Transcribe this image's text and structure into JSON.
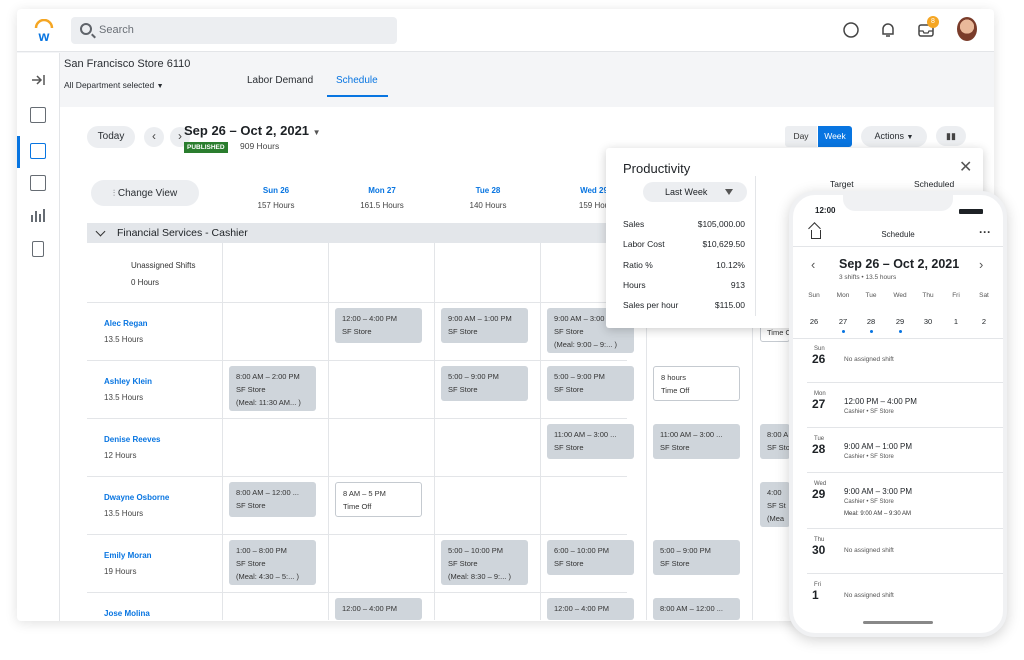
{
  "search": {
    "placeholder": "Search"
  },
  "notifications_count": "8",
  "store": {
    "name": "San Francisco Store 6110",
    "department": "All Department selected"
  },
  "tabs": [
    {
      "label": "Labor Demand"
    },
    {
      "label": "Schedule"
    }
  ],
  "toolbar": {
    "today": "Today",
    "range": "Sep 26 – Oct 2, 2021",
    "status": "PUBLISHED",
    "hours": "909 Hours",
    "day": "Day",
    "week": "Week",
    "actions": "Actions",
    "change_view": "Change View"
  },
  "days": [
    {
      "label": "Sun 26",
      "hours": "157 Hours"
    },
    {
      "label": "Mon 27",
      "hours": "161.5 Hours"
    },
    {
      "label": "Tue 28",
      "hours": "140 Hours"
    },
    {
      "label": "Wed 29",
      "hours": "159 Hou"
    }
  ],
  "group": {
    "title": "Financial Services - Cashier"
  },
  "unassigned": {
    "label": "Unassigned Shifts",
    "hours": "0 Hours"
  },
  "employees": [
    {
      "name": "Alec Regan",
      "hours": "13.5 Hours"
    },
    {
      "name": "Ashley Klein",
      "hours": "13.5 Hours"
    },
    {
      "name": "Denise Reeves",
      "hours": "12 Hours"
    },
    {
      "name": "Dwayne Osborne",
      "hours": "13.5 Hours"
    },
    {
      "name": "Emily Moran",
      "hours": "19 Hours"
    },
    {
      "name": "Jose Molina",
      "hours": ""
    }
  ],
  "shifts": {
    "alec": [
      {
        "t": "12:00 – 4:00 PM",
        "l": "SF Store"
      },
      {
        "t": "9:00 AM – 1:00 PM",
        "l": "SF Store"
      },
      {
        "t": "9:00 AM – 3:00",
        "l": "SF Store",
        "m": "(Meal: 9:00 – 9:...  )"
      },
      {
        "t": "Time Of"
      }
    ],
    "ashley": [
      {
        "t": "8:00 AM – 2:00 PM",
        "l": "SF Store",
        "m": "(Meal: 11:30 AM...  )"
      },
      {
        "t": "5:00 – 9:00 PM",
        "l": "SF Store"
      },
      {
        "t": "5:00 – 9:00 PM",
        "l": "SF Store"
      },
      {
        "t": "8 hours",
        "l": "Time Off"
      }
    ],
    "denise": [
      {
        "t": "11:00 AM – 3:00 ...",
        "l": "SF Store"
      },
      {
        "t": "11:00 AM – 3:00 ...",
        "l": "SF Store"
      },
      {
        "t": "8:00 A",
        "l": "SF Sto"
      }
    ],
    "dwayne": [
      {
        "t": "8:00 AM – 12:00 ...",
        "l": "SF Store"
      },
      {
        "t": "8 AM – 5 PM",
        "l": "Time Off"
      },
      {
        "t": "4:00",
        "l": "SF St",
        "m": "(Mea"
      }
    ],
    "emily": [
      {
        "t": "1:00 – 8:00 PM",
        "l": "SF Store",
        "m": "(Meal: 4:30 – 5:...  )"
      },
      {
        "t": "5:00 – 10:00 PM",
        "l": "SF Store",
        "m": "(Meal: 8:30 – 9:...  )"
      },
      {
        "t": "6:00 – 10:00 PM",
        "l": "SF Store"
      },
      {
        "t": "5:00 – 9:00 PM",
        "l": "SF Store"
      }
    ],
    "jose": [
      {
        "t": "12:00 – 4:00 PM"
      },
      {
        "t": "12:00 – 4:00 PM"
      },
      {
        "t": "8:00 AM – 12:00 ..."
      }
    ]
  },
  "productivity": {
    "title": "Productivity",
    "period": "Last Week",
    "col_target": "Target",
    "col_scheduled": "Scheduled",
    "stats": [
      {
        "label": "Sales",
        "value": "$105,000.00"
      },
      {
        "label": "Labor Cost",
        "value": "$10,629.50"
      },
      {
        "label": "Ratio %",
        "value": "10.12%"
      },
      {
        "label": "Hours",
        "value": "913"
      },
      {
        "label": "Sales per hour",
        "value": "$115.00"
      }
    ]
  },
  "phone": {
    "time": "12:00",
    "title": "Schedule",
    "range": "Sep 26 – Oct 2, 2021",
    "sub": "3 shifts  •  13.5 hours",
    "weekdays": [
      "Sun",
      "Mon",
      "Tue",
      "Wed",
      "Thu",
      "Fri",
      "Sat"
    ],
    "dates": [
      "26",
      "27",
      "28",
      "29",
      "30",
      "1",
      "2"
    ],
    "rows": [
      {
        "dow": "Sun",
        "num": "26",
        "text": "No assigned shift"
      },
      {
        "dow": "Mon",
        "num": "27",
        "time": "12:00 PM – 4:00 PM",
        "loc": "Cashier • SF Store"
      },
      {
        "dow": "Tue",
        "num": "28",
        "time": "9:00 AM – 1:00 PM",
        "loc": "Cashier • SF Store"
      },
      {
        "dow": "Wed",
        "num": "29",
        "time": "9:00 AM – 3:00 PM",
        "loc": "Cashier • SF Store",
        "meal": "Meal:  9:00 AM – 9:30 AM"
      },
      {
        "dow": "Thu",
        "num": "30",
        "text": "No assigned shift"
      },
      {
        "dow": "Fri",
        "num": "1",
        "text": "No assigned shift"
      }
    ]
  }
}
